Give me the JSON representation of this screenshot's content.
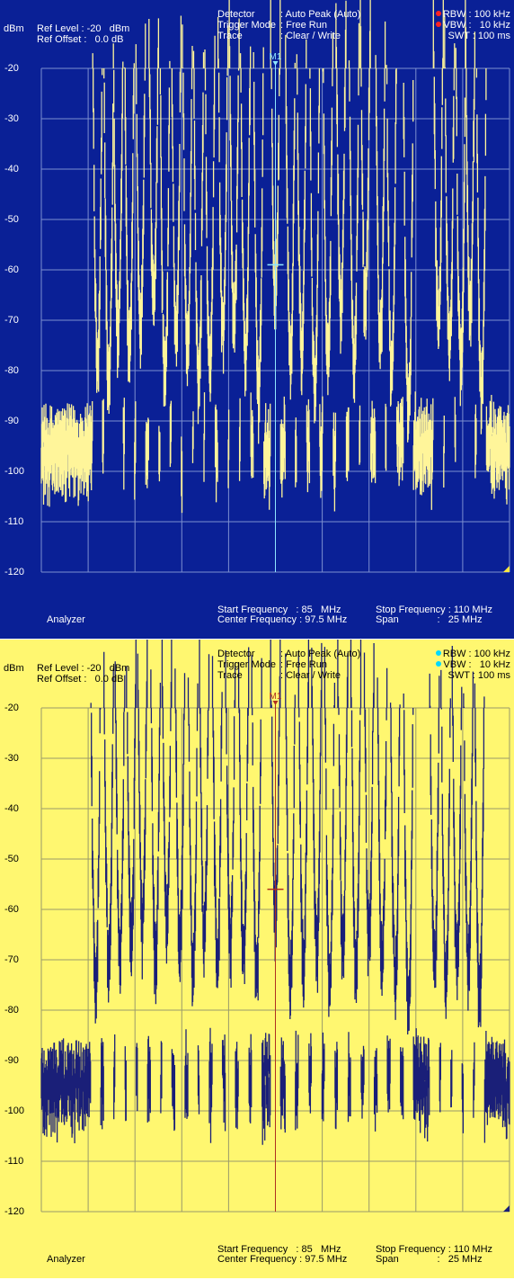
{
  "panels": [
    {
      "colors": {
        "background": "#0a2096",
        "grid": "#7c8fd0",
        "trace": "#fff59a",
        "text": "#ffffff",
        "marker_line": "#8fe6ff",
        "marker_label": "#8fe6ff",
        "indicator": "#ff2020",
        "corner": "#ffea40"
      },
      "header": {
        "unit": "dBm",
        "ref_level_label": "Ref Level : -20   dBm",
        "ref_offset_label": "Ref Offset :   0.0 dB",
        "detector_label": "Detector",
        "detector_value": ": Auto Peak (Auto)",
        "trigger_label": "Trigger Mode",
        "trigger_value": ": Free Run",
        "trace_label": "Trace",
        "trace_value": ": Clear / Write",
        "rbw": "RBW : 100 kHz",
        "vbw": "VBW :   10 kHz",
        "swt": "SWT : 100 ms"
      },
      "marker_label": "M1",
      "footer": {
        "mode": "Analyzer",
        "start_freq": "Start Frequency   : 85   MHz",
        "center_freq": "Center Frequency : 97.5 MHz",
        "stop_freq": "Stop Frequency : 110 MHz",
        "span": "Span              :   25 MHz"
      }
    },
    {
      "colors": {
        "background": "#fff770",
        "grid": "#9a9a6a",
        "trace": "#1a1f78",
        "text": "#000000",
        "marker_line": "#b03020",
        "marker_label": "#b03020",
        "indicator": "#00d8ff",
        "corner": "#1a1f78"
      },
      "header": {
        "unit": "dBm",
        "ref_level_label": "Ref Level : -20   dBm",
        "ref_offset_label": "Ref Offset :   0.0 dB",
        "detector_label": "Detector",
        "detector_value": ": Auto Peak (Auto)",
        "trigger_label": "Trigger Mode",
        "trigger_value": ": Free Run",
        "trace_label": "Trace",
        "trace_value": ": Clear / Write",
        "rbw": "RBW : 100 kHz",
        "vbw": "VBW :   10 kHz",
        "swt": "SWT : 100 ms"
      },
      "marker_label": "M1",
      "footer": {
        "mode": "Analyzer",
        "start_freq": "Start Frequency   : 85   MHz",
        "center_freq": "Center Frequency : 97.5 MHz",
        "stop_freq": "Stop Frequency : 110 MHz",
        "span": "Span              :   25 MHz"
      }
    }
  ],
  "chart_data": [
    {
      "type": "line",
      "xlim": [
        85,
        110
      ],
      "ylim": [
        -120,
        -20
      ],
      "y_ticks": [
        "-20",
        "-30",
        "-40",
        "-50",
        "-60",
        "-70",
        "-80",
        "-90",
        "-100",
        "-110",
        "-120"
      ],
      "grid": true,
      "noise_floor": -91,
      "marker": {
        "x": 97.5,
        "y": -59
      },
      "peaks": [
        {
          "x": 88.0,
          "y": -73
        },
        {
          "x": 88.6,
          "y": -76
        },
        {
          "x": 89.1,
          "y": -69
        },
        {
          "x": 89.7,
          "y": -71
        },
        {
          "x": 90.3,
          "y": -66
        },
        {
          "x": 91.0,
          "y": -62
        },
        {
          "x": 91.6,
          "y": -77
        },
        {
          "x": 92.2,
          "y": -67
        },
        {
          "x": 92.8,
          "y": -70
        },
        {
          "x": 93.4,
          "y": -78
        },
        {
          "x": 94.0,
          "y": -74
        },
        {
          "x": 94.7,
          "y": -69
        },
        {
          "x": 95.3,
          "y": -66
        },
        {
          "x": 95.9,
          "y": -73
        },
        {
          "x": 96.6,
          "y": -79
        },
        {
          "x": 97.5,
          "y": -59
        },
        {
          "x": 98.3,
          "y": -72
        },
        {
          "x": 98.9,
          "y": -70
        },
        {
          "x": 99.6,
          "y": -78
        },
        {
          "x": 100.3,
          "y": -73
        },
        {
          "x": 101.0,
          "y": -63
        },
        {
          "x": 101.7,
          "y": -74
        },
        {
          "x": 102.3,
          "y": -62
        },
        {
          "x": 103.1,
          "y": -69
        },
        {
          "x": 103.7,
          "y": -76
        },
        {
          "x": 104.6,
          "y": -84
        },
        {
          "x": 106.2,
          "y": -66
        },
        {
          "x": 106.8,
          "y": -71
        },
        {
          "x": 107.4,
          "y": -74
        },
        {
          "x": 107.9,
          "y": -63
        },
        {
          "x": 108.5,
          "y": -80
        }
      ]
    },
    {
      "type": "line",
      "xlim": [
        85,
        110
      ],
      "ylim": [
        -120,
        -20
      ],
      "y_ticks": [
        "-20",
        "-30",
        "-40",
        "-50",
        "-60",
        "-70",
        "-80",
        "-90",
        "-100",
        "-110",
        "-120"
      ],
      "grid": true,
      "noise_floor": -90,
      "marker": {
        "x": 97.5,
        "y": -56
      },
      "peaks": [
        {
          "x": 87.9,
          "y": -72
        },
        {
          "x": 88.6,
          "y": -66
        },
        {
          "x": 89.2,
          "y": -64
        },
        {
          "x": 89.8,
          "y": -61
        },
        {
          "x": 90.4,
          "y": -59
        },
        {
          "x": 91.1,
          "y": -65
        },
        {
          "x": 91.7,
          "y": -58
        },
        {
          "x": 92.4,
          "y": -62
        },
        {
          "x": 93.1,
          "y": -68
        },
        {
          "x": 93.7,
          "y": -60
        },
        {
          "x": 94.4,
          "y": -66
        },
        {
          "x": 95.1,
          "y": -63
        },
        {
          "x": 95.8,
          "y": -65
        },
        {
          "x": 96.5,
          "y": -70
        },
        {
          "x": 97.5,
          "y": -56
        },
        {
          "x": 98.3,
          "y": -69
        },
        {
          "x": 99.0,
          "y": -66
        },
        {
          "x": 99.7,
          "y": -64
        },
        {
          "x": 100.4,
          "y": -71
        },
        {
          "x": 101.1,
          "y": -63
        },
        {
          "x": 101.8,
          "y": -67
        },
        {
          "x": 102.5,
          "y": -61
        },
        {
          "x": 103.2,
          "y": -66
        },
        {
          "x": 103.9,
          "y": -69
        },
        {
          "x": 104.6,
          "y": -74
        },
        {
          "x": 106.0,
          "y": -67
        },
        {
          "x": 106.6,
          "y": -69
        },
        {
          "x": 107.2,
          "y": -66
        },
        {
          "x": 107.8,
          "y": -67
        },
        {
          "x": 108.4,
          "y": -72
        }
      ]
    }
  ]
}
